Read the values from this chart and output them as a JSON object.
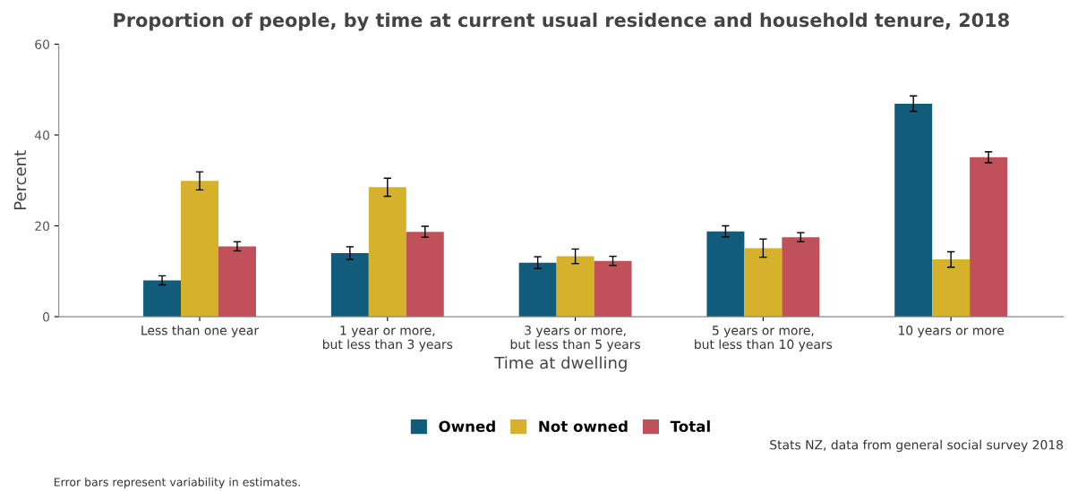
{
  "chart_data": {
    "type": "bar",
    "title": "Proportion of people, by time at current usual residence and household tenure, 2018",
    "xlabel": "Time at dwelling",
    "ylabel": "Percent",
    "categories": [
      "Less than one year",
      "1 year or more,\nbut less than 3 years",
      "3 years or more,\nbut less than 5 years",
      "5 years or more,\nbut less than 10 years",
      "10 years or more"
    ],
    "series": [
      {
        "name": "Owned",
        "color": "#105c7a",
        "values": [
          8.0,
          14.0,
          11.9,
          18.8,
          46.9
        ],
        "errors": [
          1.0,
          1.4,
          1.3,
          1.2,
          1.7
        ]
      },
      {
        "name": "Not owned",
        "color": "#d6b12b",
        "values": [
          29.9,
          28.5,
          13.3,
          15.1,
          12.6
        ],
        "errors": [
          2.0,
          2.0,
          1.6,
          2.0,
          1.7
        ]
      },
      {
        "name": "Total",
        "color": "#c0505a",
        "values": [
          15.5,
          18.7,
          12.3,
          17.5,
          35.1
        ],
        "errors": [
          1.0,
          1.2,
          1.0,
          1.0,
          1.2
        ]
      }
    ],
    "ylim": [
      0,
      60
    ],
    "yticks": [
      0,
      20,
      40,
      60
    ],
    "grid": false,
    "legend": "bottom",
    "annotations": [
      "Stats NZ, data from general social survey 2018",
      "Error bars represent variability in estimates."
    ]
  }
}
